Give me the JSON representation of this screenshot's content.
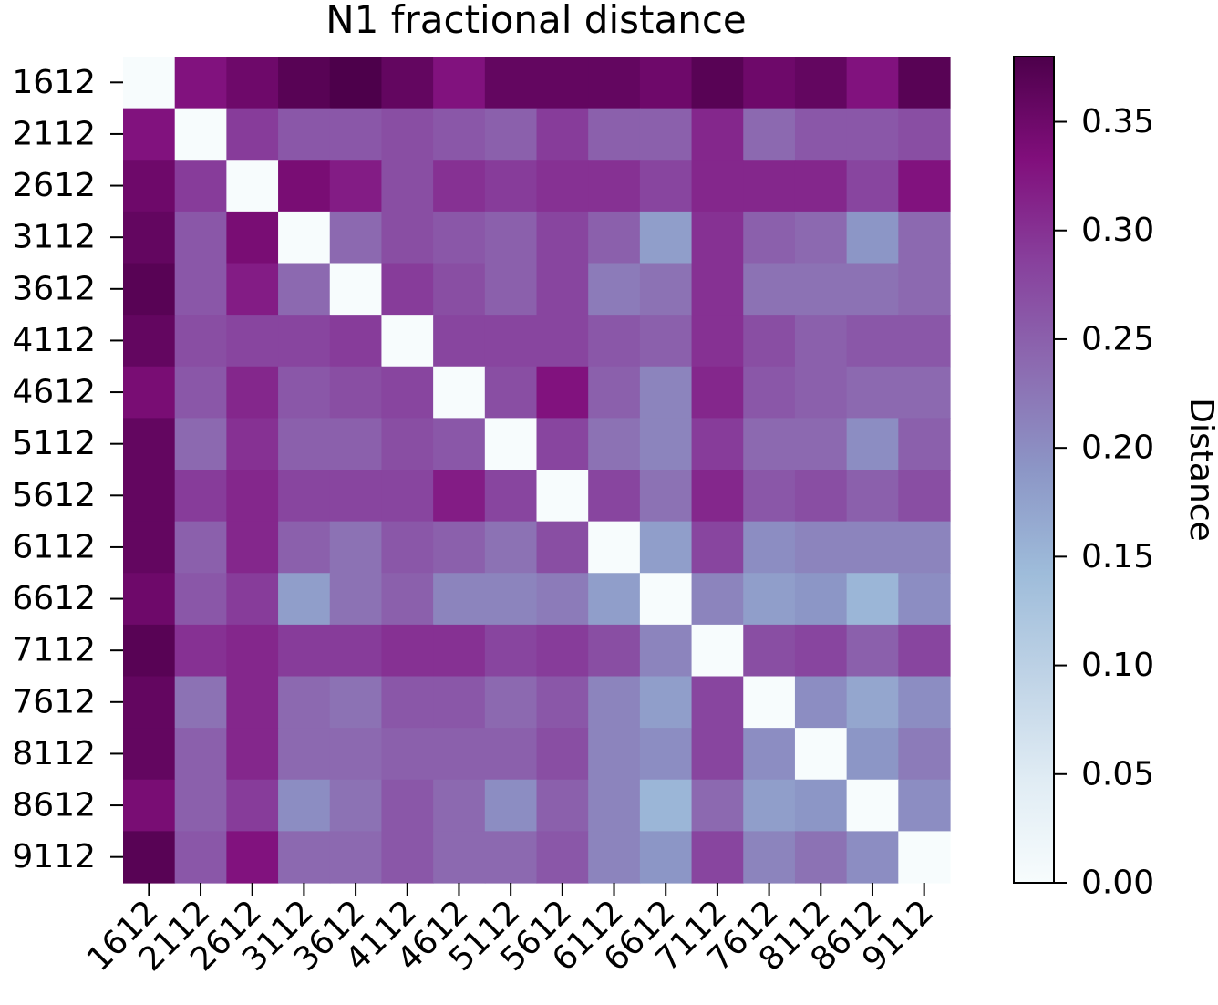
{
  "chart_data": {
    "type": "heatmap",
    "title": "N1 fractional distance",
    "xlabel": "",
    "ylabel": "",
    "categories": [
      "1612",
      "2112",
      "2612",
      "3112",
      "3612",
      "4112",
      "4612",
      "5112",
      "5612",
      "6112",
      "6612",
      "7112",
      "7612",
      "8112",
      "8612",
      "9112"
    ],
    "values": [
      [
        0.0,
        0.33,
        0.35,
        0.37,
        0.38,
        0.36,
        0.33,
        0.36,
        0.36,
        0.36,
        0.35,
        0.37,
        0.35,
        0.36,
        0.33,
        0.37
      ],
      [
        0.33,
        0.0,
        0.29,
        0.26,
        0.26,
        0.27,
        0.26,
        0.25,
        0.29,
        0.25,
        0.25,
        0.31,
        0.24,
        0.26,
        0.26,
        0.27
      ],
      [
        0.35,
        0.29,
        0.0,
        0.34,
        0.32,
        0.27,
        0.3,
        0.29,
        0.3,
        0.3,
        0.28,
        0.31,
        0.31,
        0.31,
        0.28,
        0.33
      ],
      [
        0.36,
        0.26,
        0.34,
        0.0,
        0.24,
        0.27,
        0.26,
        0.25,
        0.28,
        0.25,
        0.18,
        0.3,
        0.25,
        0.24,
        0.19,
        0.24
      ],
      [
        0.37,
        0.26,
        0.32,
        0.24,
        0.0,
        0.29,
        0.27,
        0.25,
        0.28,
        0.22,
        0.23,
        0.3,
        0.23,
        0.23,
        0.23,
        0.24
      ],
      [
        0.36,
        0.27,
        0.28,
        0.28,
        0.29,
        0.0,
        0.28,
        0.28,
        0.28,
        0.26,
        0.25,
        0.3,
        0.27,
        0.25,
        0.26,
        0.26
      ],
      [
        0.34,
        0.26,
        0.31,
        0.26,
        0.27,
        0.28,
        0.0,
        0.27,
        0.33,
        0.25,
        0.21,
        0.31,
        0.26,
        0.25,
        0.24,
        0.24
      ],
      [
        0.36,
        0.24,
        0.3,
        0.25,
        0.25,
        0.27,
        0.26,
        0.0,
        0.28,
        0.23,
        0.21,
        0.29,
        0.24,
        0.24,
        0.2,
        0.25
      ],
      [
        0.36,
        0.29,
        0.31,
        0.28,
        0.28,
        0.28,
        0.32,
        0.28,
        0.0,
        0.28,
        0.23,
        0.31,
        0.26,
        0.27,
        0.25,
        0.27
      ],
      [
        0.36,
        0.25,
        0.31,
        0.25,
        0.23,
        0.26,
        0.25,
        0.23,
        0.27,
        0.0,
        0.18,
        0.28,
        0.2,
        0.21,
        0.21,
        0.21
      ],
      [
        0.35,
        0.26,
        0.29,
        0.18,
        0.23,
        0.25,
        0.21,
        0.21,
        0.22,
        0.18,
        0.0,
        0.21,
        0.18,
        0.19,
        0.15,
        0.2
      ],
      [
        0.37,
        0.3,
        0.31,
        0.29,
        0.29,
        0.3,
        0.3,
        0.28,
        0.29,
        0.27,
        0.21,
        0.0,
        0.27,
        0.28,
        0.25,
        0.28
      ],
      [
        0.36,
        0.23,
        0.31,
        0.24,
        0.23,
        0.26,
        0.26,
        0.24,
        0.26,
        0.21,
        0.18,
        0.28,
        0.0,
        0.2,
        0.17,
        0.2
      ],
      [
        0.36,
        0.25,
        0.31,
        0.24,
        0.24,
        0.25,
        0.25,
        0.25,
        0.27,
        0.21,
        0.2,
        0.28,
        0.2,
        0.0,
        0.19,
        0.22
      ],
      [
        0.34,
        0.25,
        0.29,
        0.2,
        0.23,
        0.26,
        0.24,
        0.2,
        0.25,
        0.21,
        0.15,
        0.24,
        0.18,
        0.19,
        0.0,
        0.2
      ],
      [
        0.37,
        0.26,
        0.33,
        0.24,
        0.24,
        0.26,
        0.24,
        0.24,
        0.26,
        0.21,
        0.19,
        0.28,
        0.21,
        0.23,
        0.2,
        0.0
      ]
    ],
    "colorbar": {
      "label": "Distance",
      "range": [
        0.0,
        0.38
      ],
      "ticks": [
        0.0,
        0.05,
        0.1,
        0.15,
        0.2,
        0.25,
        0.3,
        0.35
      ],
      "tick_labels": [
        "0.00",
        "0.05",
        "0.10",
        "0.15",
        "0.20",
        "0.25",
        "0.30",
        "0.35"
      ],
      "colormap": "BuPu",
      "colormap_stops": [
        "#f7fcfd",
        "#e0ecf4",
        "#bfd3e6",
        "#9ebcda",
        "#8c96c6",
        "#8c6bb1",
        "#88419d",
        "#810f7c",
        "#4d004b"
      ]
    },
    "xtick_rotation": "45 degrees",
    "grid": false
  }
}
